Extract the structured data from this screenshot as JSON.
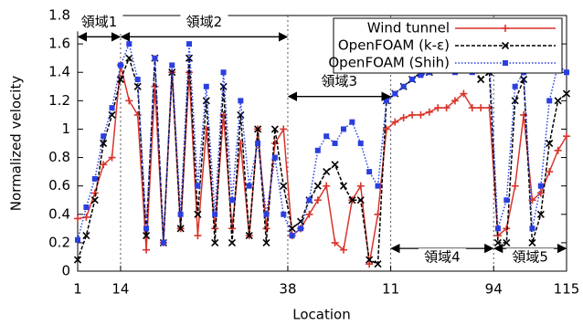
{
  "chart_data": {
    "type": "line",
    "xlabel": "Location",
    "ylabel": "Normalized velocity",
    "x": [
      1,
      3,
      5,
      7,
      9,
      11,
      13,
      15,
      17,
      19,
      21,
      23,
      25,
      27,
      29,
      31,
      33,
      35,
      37,
      39,
      41,
      43,
      45,
      47,
      49,
      51,
      53,
      55,
      57,
      59,
      61,
      63,
      65,
      67,
      69,
      71,
      73,
      75,
      77,
      79,
      81,
      83,
      85,
      87,
      89,
      91,
      93,
      95,
      97,
      99,
      101,
      103,
      105,
      107,
      109,
      111,
      113,
      115
    ],
    "series": [
      {
        "name": "Wind tunnel",
        "color": "#d9342b",
        "marker": "plus",
        "dash": "solid",
        "values": [
          0.37,
          0.38,
          0.55,
          0.75,
          0.8,
          1.45,
          1.2,
          1.1,
          0.15,
          1.3,
          0.2,
          1.4,
          0.3,
          1.4,
          0.25,
          1.0,
          0.3,
          1.1,
          0.3,
          0.9,
          0.25,
          1.0,
          0.3,
          0.9,
          1.0,
          0.25,
          0.3,
          0.4,
          0.5,
          0.6,
          0.2,
          0.15,
          0.5,
          0.6,
          0.05,
          0.4,
          1.0,
          1.05,
          1.08,
          1.1,
          1.1,
          1.12,
          1.15,
          1.15,
          1.2,
          1.25,
          1.15,
          1.15,
          1.15,
          0.25,
          0.3,
          0.6,
          1.1,
          0.5,
          0.55,
          0.7,
          0.85,
          0.95
        ]
      },
      {
        "name": "OpenFOAM (k-ε)",
        "color": "#000000",
        "marker": "cross",
        "dash": "dashed",
        "values": [
          0.08,
          0.25,
          0.5,
          0.9,
          1.1,
          1.35,
          1.5,
          1.3,
          0.25,
          1.5,
          0.2,
          1.4,
          0.3,
          1.5,
          0.4,
          1.2,
          0.2,
          1.3,
          0.2,
          1.1,
          0.25,
          1.0,
          0.2,
          1.0,
          0.6,
          0.3,
          0.35,
          0.5,
          0.6,
          0.7,
          0.75,
          0.6,
          0.5,
          0.5,
          0.08,
          0.05,
          1.2,
          1.25,
          1.3,
          1.35,
          1.4,
          1.4,
          1.45,
          1.5,
          1.45,
          1.5,
          1.45,
          1.35,
          1.4,
          0.2,
          0.2,
          1.2,
          1.35,
          0.2,
          0.4,
          0.9,
          1.2,
          1.25
        ]
      },
      {
        "name": "OpenFOAM (Shih)",
        "color": "#2a3fe0",
        "marker": "square",
        "dash": "dotted",
        "values": [
          0.22,
          0.45,
          0.65,
          0.95,
          1.15,
          1.45,
          1.6,
          1.35,
          0.3,
          1.5,
          0.2,
          1.45,
          0.4,
          1.6,
          0.6,
          1.3,
          0.4,
          1.4,
          0.5,
          1.2,
          0.6,
          0.9,
          0.4,
          0.8,
          0.4,
          0.25,
          0.3,
          0.5,
          0.85,
          0.95,
          0.9,
          1.0,
          1.05,
          0.9,
          0.7,
          0.6,
          1.2,
          1.25,
          1.3,
          1.35,
          1.38,
          1.4,
          1.45,
          1.45,
          1.4,
          1.5,
          1.4,
          1.45,
          1.5,
          0.3,
          0.5,
          1.3,
          1.4,
          0.3,
          0.6,
          1.2,
          1.45,
          1.4
        ]
      }
    ],
    "xlim": [
      1,
      115
    ],
    "xticks": [
      1,
      {
        "value": 11,
        "label": "14"
      },
      {
        "value": 50,
        "label": "38"
      },
      {
        "value": 74,
        "label": "11"
      },
      {
        "value": 98,
        "label": "94"
      },
      115
    ],
    "ylim": [
      0,
      1.8
    ],
    "yticks": [
      0,
      0.2,
      0.4,
      0.6,
      0.8,
      1,
      1.2,
      1.4,
      1.6,
      1.8
    ],
    "xgrid": true,
    "legend": "upper right",
    "annotations": [
      {
        "text": "領域1",
        "from": 1,
        "to": 11,
        "y": 1.65
      },
      {
        "text": "領域2",
        "from": 11,
        "to": 50,
        "y": 1.65
      },
      {
        "text": "領域3",
        "from": 50,
        "to": 74,
        "y": 1.23
      },
      {
        "text": "領域4",
        "from": 74,
        "to": 98,
        "y": 0.16
      },
      {
        "text": "領域5",
        "from": 98,
        "to": 115,
        "y": 0.16
      }
    ]
  }
}
